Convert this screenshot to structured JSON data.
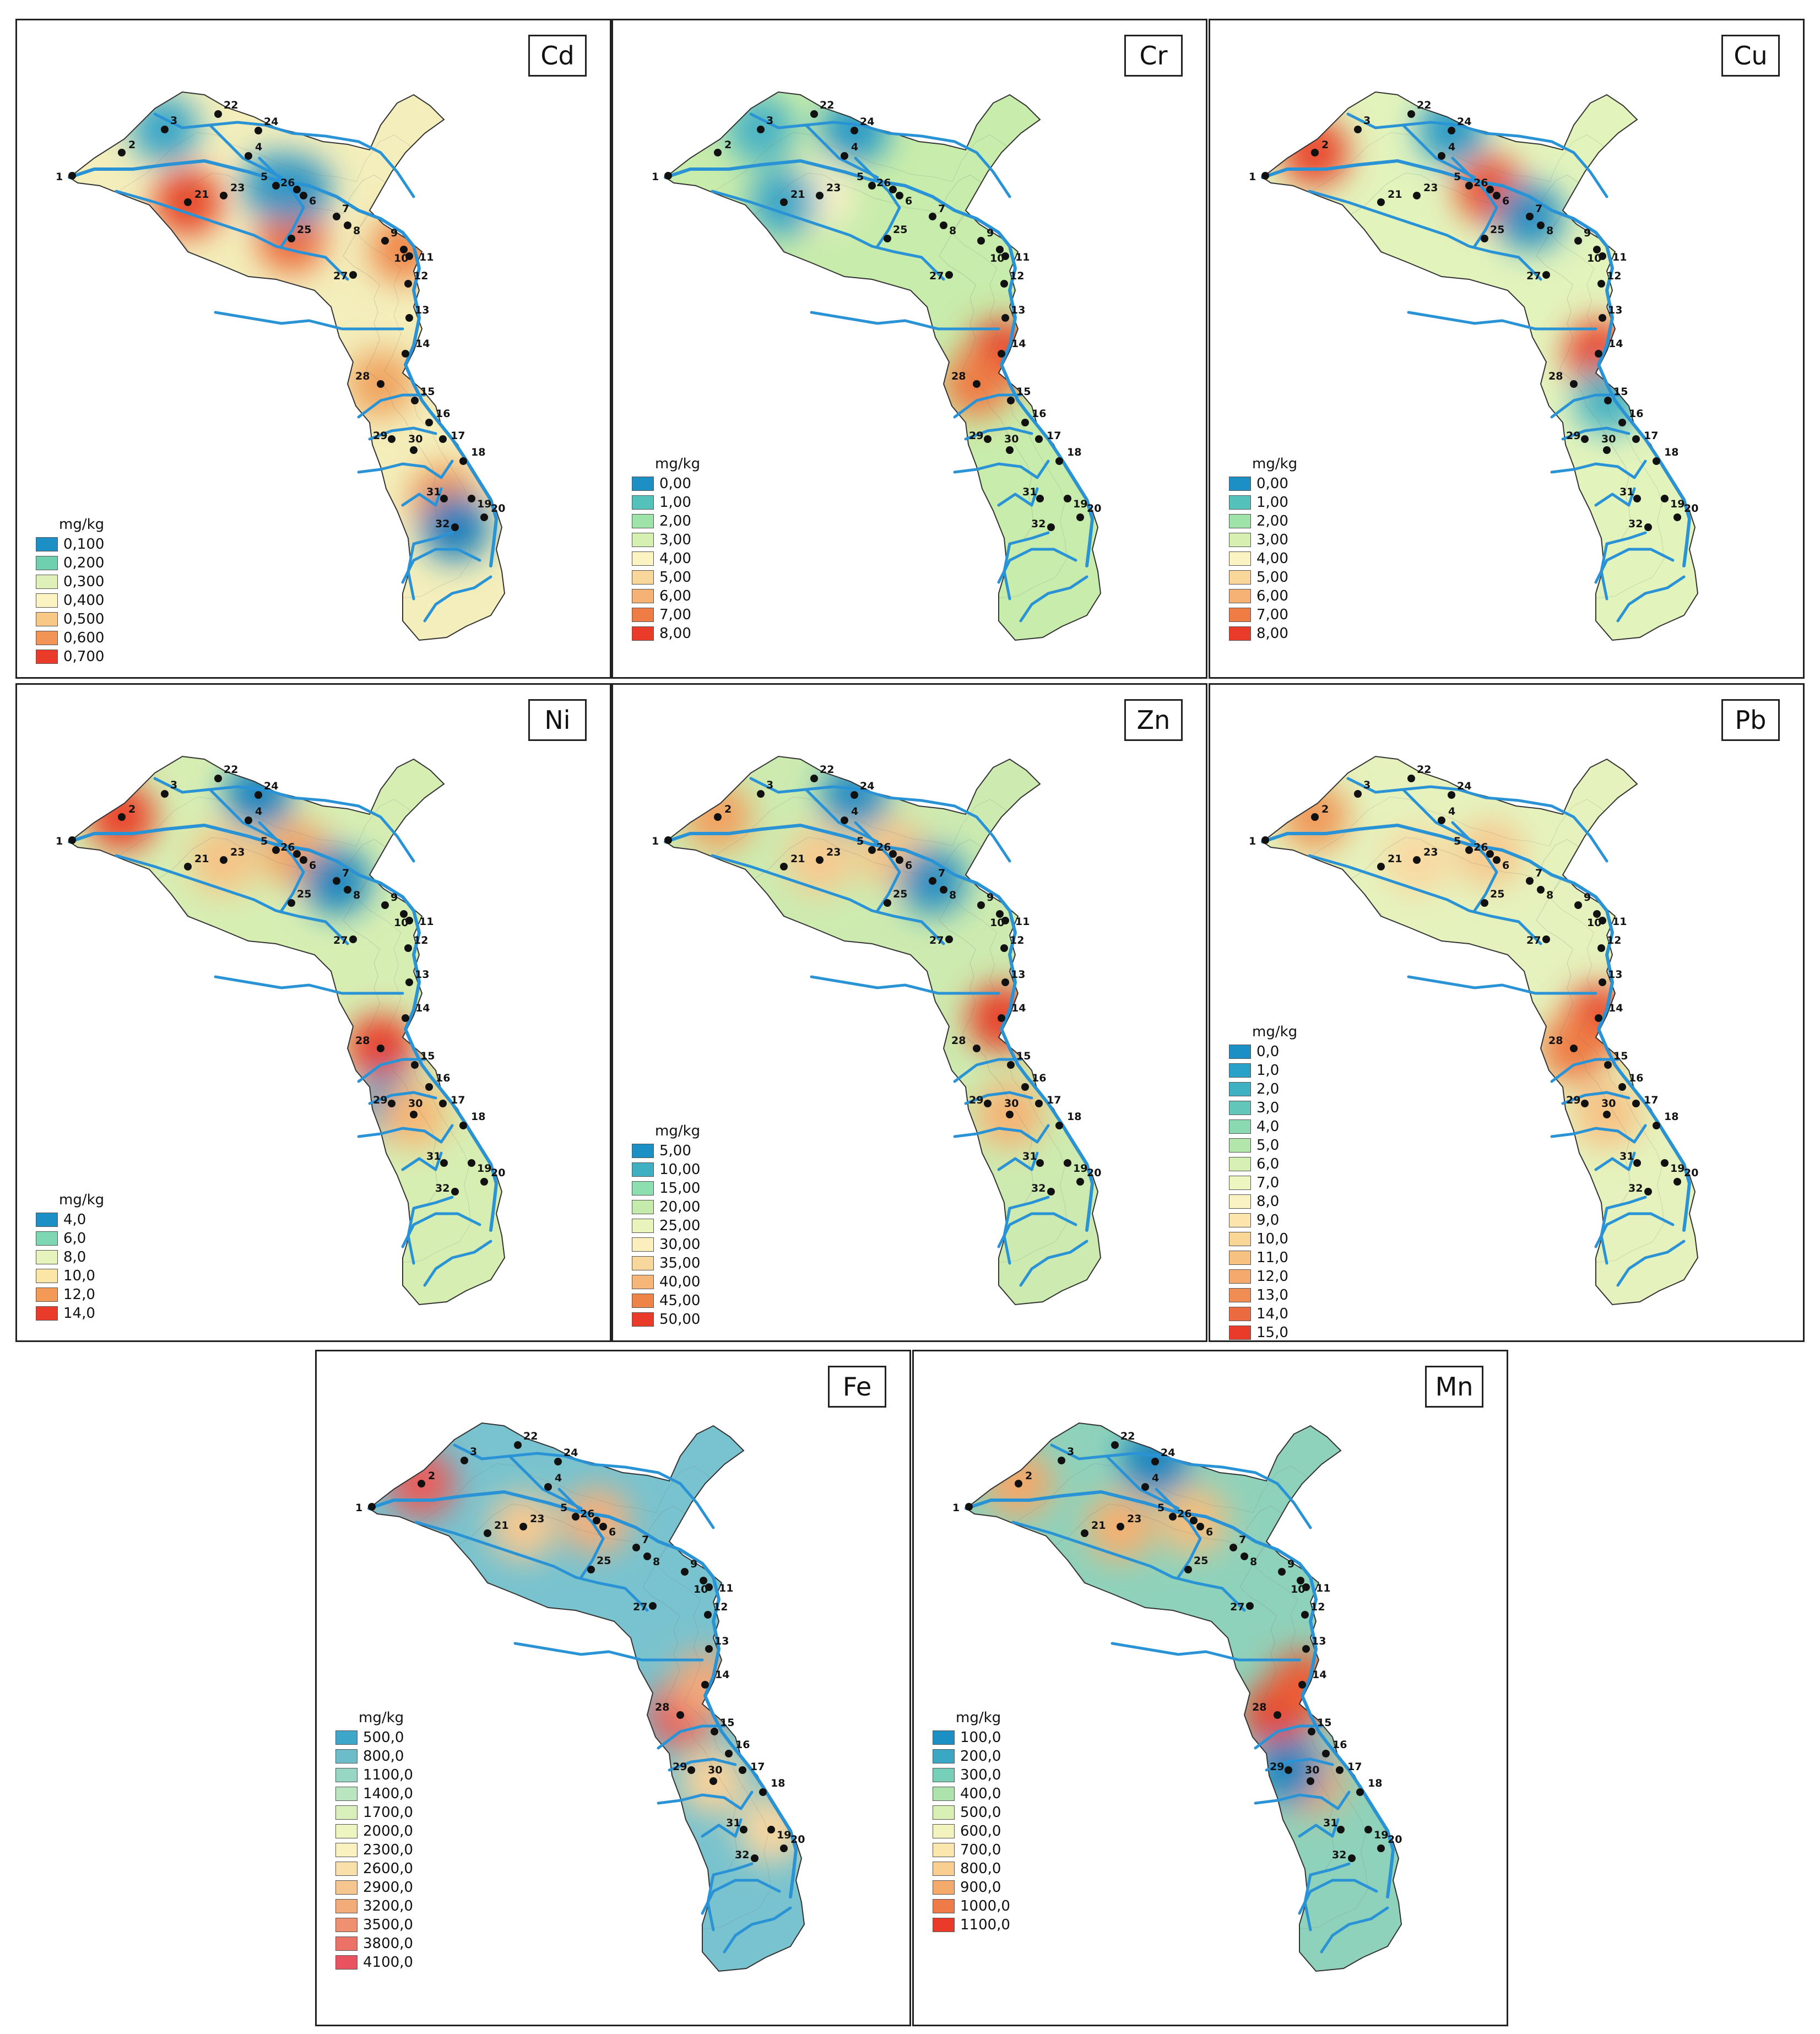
{
  "unit": "mg/kg",
  "river_color": "#2a93d5",
  "panels": [
    {
      "element": "Cd",
      "legend": [
        "0,100",
        "0,200",
        "0,300",
        "0,400",
        "0,500",
        "0,600",
        "0,700"
      ],
      "legend_colors": [
        "#1c8fc4",
        "#6fd0b0",
        "#dff0b8",
        "#fbf3c2",
        "#f8c887",
        "#f29456",
        "#ea3b2a"
      ],
      "base": "#f3eebb",
      "hotspots": [
        {
          "station": "21",
          "color": "#e64a2c"
        },
        {
          "station": "25",
          "color": "#ec6c3a"
        },
        {
          "station": "10",
          "color": "#ef8a4d"
        },
        {
          "station": "28",
          "color": "#f0a460"
        },
        {
          "station": "31",
          "color": "#f0944f"
        },
        {
          "station": "3",
          "color": "#3aa6c8"
        },
        {
          "station": "26",
          "color": "#2a8fc2"
        },
        {
          "station": "5",
          "color": "#3499c6"
        },
        {
          "station": "32",
          "color": "#1a7fbd"
        }
      ]
    },
    {
      "element": "Cr",
      "legend": [
        "0,00",
        "1,00",
        "2,00",
        "3,00",
        "4,00",
        "5,00",
        "6,00",
        "7,00",
        "8,00"
      ],
      "legend_colors": [
        "#1c8fc4",
        "#54c2bb",
        "#9ee3a7",
        "#d5f0b0",
        "#fbf3c2",
        "#f9d79b",
        "#f5b274",
        "#ef7c44",
        "#ea3b2a"
      ],
      "base": "#c8ecab",
      "hotspots": [
        {
          "station": "14",
          "color": "#e8432b"
        },
        {
          "station": "28",
          "color": "#ef7c44"
        },
        {
          "station": "23",
          "color": "#fbf2c8"
        },
        {
          "station": "24",
          "color": "#2b9bc7"
        },
        {
          "station": "3",
          "color": "#4ab3c4"
        },
        {
          "station": "21",
          "color": "#3aa6c8"
        }
      ]
    },
    {
      "element": "Cu",
      "legend": [
        "0,00",
        "1,00",
        "2,00",
        "3,00",
        "4,00",
        "5,00",
        "6,00",
        "7,00",
        "8,00"
      ],
      "legend_colors": [
        "#1c8fc4",
        "#54c2bb",
        "#9ee3a7",
        "#d5f0b0",
        "#fbf3c2",
        "#f9d79b",
        "#f5b274",
        "#ef7c44",
        "#ea3b2a"
      ],
      "base": "#e3f3bc",
      "hotspots": [
        {
          "station": "2",
          "color": "#e9482d"
        },
        {
          "station": "26",
          "color": "#ea5433"
        },
        {
          "station": "14",
          "color": "#ea4a2e"
        },
        {
          "station": "24",
          "color": "#2b9bc7"
        },
        {
          "station": "7",
          "color": "#2a8fc2"
        },
        {
          "station": "15",
          "color": "#4ab3c4"
        }
      ]
    },
    {
      "element": "Ni",
      "legend": [
        "4,0",
        "6,0",
        "8,0",
        "10,0",
        "12,0",
        "14,0"
      ],
      "legend_colors": [
        "#1c8fc4",
        "#7fd6b2",
        "#e6f3bd",
        "#fbe6a8",
        "#f39a58",
        "#ea3b2a"
      ],
      "base": "#d7eeb3",
      "hotspots": [
        {
          "station": "2",
          "color": "#e9452c"
        },
        {
          "station": "28",
          "color": "#e8402a"
        },
        {
          "station": "26",
          "color": "#f3a565"
        },
        {
          "station": "23",
          "color": "#f7c285"
        },
        {
          "station": "24",
          "color": "#1f86c0"
        },
        {
          "station": "7",
          "color": "#1f86c0"
        },
        {
          "station": "29",
          "color": "#2a90c3"
        },
        {
          "station": "30",
          "color": "#f6b776"
        }
      ]
    },
    {
      "element": "Zn",
      "legend": [
        "5,00",
        "10,00",
        "15,00",
        "20,00",
        "25,00",
        "30,00",
        "35,00",
        "40,00",
        "45,00",
        "50,00"
      ],
      "legend_colors": [
        "#1c8fc4",
        "#3fb0c2",
        "#8ddfb0",
        "#c4ebab",
        "#e9f4bd",
        "#fbf0bd",
        "#f8d79c",
        "#f5b677",
        "#ef8449",
        "#ea3b2a"
      ],
      "base": "#cdebb0",
      "hotspots": [
        {
          "station": "14",
          "color": "#e8432b"
        },
        {
          "station": "2",
          "color": "#f2a161"
        },
        {
          "station": "26",
          "color": "#f6c386"
        },
        {
          "station": "23",
          "color": "#f7c98f"
        },
        {
          "station": "24",
          "color": "#2b8fc3"
        },
        {
          "station": "7",
          "color": "#2b8fc3"
        },
        {
          "station": "30",
          "color": "#f5b374"
        }
      ]
    },
    {
      "element": "Pb",
      "legend": [
        "0,0",
        "1,0",
        "2,0",
        "3,0",
        "4,0",
        "5,0",
        "6,0",
        "7,0",
        "8,0",
        "9,0",
        "10,0",
        "11,0",
        "12,0",
        "13,0",
        "14,0",
        "15,0"
      ],
      "legend_colors": [
        "#1c8fc4",
        "#2aa1c6",
        "#3fb1c3",
        "#62c6b9",
        "#8ad9b0",
        "#b2e6ab",
        "#d6f0b3",
        "#eef6c0",
        "#fbf2c4",
        "#fbe5ac",
        "#f9d596",
        "#f7c281",
        "#f4aa6c",
        "#f08d55",
        "#ec6a40",
        "#ea3b2a"
      ],
      "base": "#e5f2bd",
      "hotspots": [
        {
          "station": "14",
          "color": "#e94a2e"
        },
        {
          "station": "28",
          "color": "#ef7c44"
        },
        {
          "station": "2",
          "color": "#f09a5a"
        },
        {
          "station": "26",
          "color": "#f7c98f"
        },
        {
          "station": "23",
          "color": "#f9d8a0"
        },
        {
          "station": "30",
          "color": "#f7c285"
        }
      ]
    },
    {
      "element": "Fe",
      "legend": [
        "500,0",
        "800,0",
        "1100,0",
        "1400,0",
        "1700,0",
        "2000,0",
        "2300,0",
        "2600,0",
        "2900,0",
        "3200,0",
        "3500,0",
        "3800,0",
        "4100,0"
      ],
      "legend_colors": [
        "#3ea6c9",
        "#6cbcc9",
        "#96d6c3",
        "#b9e6be",
        "#d9f0bc",
        "#eef5c1",
        "#fbf0c0",
        "#f9dfaa",
        "#f5c690",
        "#f2ac7a",
        "#ef9070",
        "#ec7268",
        "#e9525f"
      ],
      "base": "#78c3cf",
      "hotspots": [
        {
          "station": "2",
          "color": "#e85d5c"
        },
        {
          "station": "28",
          "color": "#e8625f"
        },
        {
          "station": "23",
          "color": "#f6c891"
        },
        {
          "station": "26",
          "color": "#f3b07d"
        },
        {
          "station": "30",
          "color": "#f7d19b"
        },
        {
          "station": "19",
          "color": "#f8d6a0"
        },
        {
          "station": "14",
          "color": "#f2a97a"
        }
      ]
    },
    {
      "element": "Mn",
      "legend": [
        "100,0",
        "200,0",
        "300,0",
        "400,0",
        "500,0",
        "600,0",
        "700,0",
        "800,0",
        "900,0",
        "1000,0",
        "1100,0"
      ],
      "legend_colors": [
        "#1c8fc4",
        "#3aa8c5",
        "#76cfb8",
        "#aee2ad",
        "#d9f0b4",
        "#f3f3c0",
        "#fbe6ad",
        "#f8cf91",
        "#f3aa6b",
        "#ee7b48",
        "#ea3b2a"
      ],
      "base": "#8fd2bb",
      "hotspots": [
        {
          "station": "28",
          "color": "#e8432b"
        },
        {
          "station": "14",
          "color": "#ec5b35"
        },
        {
          "station": "23",
          "color": "#f5b071"
        },
        {
          "station": "26",
          "color": "#f5bd7e"
        },
        {
          "station": "2",
          "color": "#f3a86b"
        },
        {
          "station": "30",
          "color": "#f3a86b"
        },
        {
          "station": "24",
          "color": "#1f86c0"
        },
        {
          "station": "29",
          "color": "#1f86c0"
        }
      ]
    }
  ],
  "stations": [
    "1",
    "2",
    "3",
    "4",
    "5",
    "6",
    "7",
    "8",
    "9",
    "10",
    "11",
    "12",
    "13",
    "14",
    "15",
    "16",
    "17",
    "18",
    "19",
    "20",
    "21",
    "22",
    "23",
    "24",
    "25",
    "26",
    "27",
    "28",
    "29",
    "30",
    "31",
    "32"
  ]
}
